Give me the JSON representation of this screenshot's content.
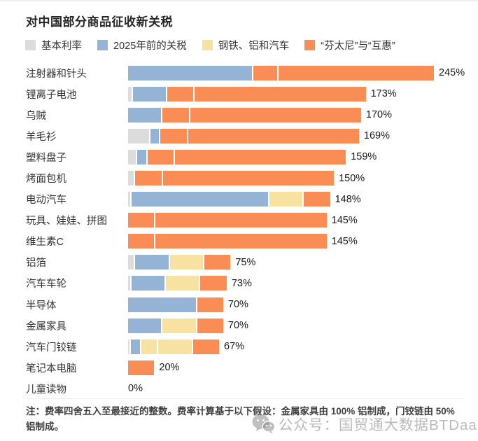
{
  "title": "对中国部分商品征收新关税",
  "legend": {
    "items": [
      {
        "key": "base",
        "label": "基本利率",
        "color": "#dcdcdc"
      },
      {
        "key": "pre2025",
        "label": "2025年前的关税",
        "color": "#95b3d4"
      },
      {
        "key": "steel",
        "label": "钢铁、铝和汽车",
        "color": "#f8e2a2"
      },
      {
        "key": "fentanyl",
        "label": "“芬太尼”与“互惠”",
        "color": "#f98d55"
      }
    ]
  },
  "chart_data": {
    "type": "bar",
    "orientation": "horizontal",
    "stacked": true,
    "unit": "%",
    "value_axis": {
      "min": 0,
      "max": 245,
      "visible": false
    },
    "legend_position": "top",
    "grid": false,
    "series_keys": [
      "base",
      "pre2025",
      "steel",
      "fentanyl"
    ],
    "categories": [
      "注射器和针头",
      "锂离子电池",
      "乌贼",
      "羊毛衫",
      "塑料盘子",
      "烤面包机",
      "电动汽车",
      "玩具、娃娃、拼图",
      "维生素C",
      "铝箔",
      "汽车车轮",
      "半导体",
      "金属家具",
      "汽车门铰链",
      "笔记本电脑",
      "儿童读物"
    ],
    "rows": [
      {
        "label": "注射器和针头",
        "total": 245,
        "total_label": "245%",
        "segments": [
          {
            "key": "pre2025",
            "value": 100
          },
          {
            "key": "fentanyl",
            "value": 20
          },
          {
            "key": "fentanyl",
            "value": 125
          }
        ]
      },
      {
        "label": "锂离子电池",
        "total": 173,
        "total_label": "173%",
        "segments": [
          {
            "key": "base",
            "value": 3.4
          },
          {
            "key": "pre2025",
            "value": 25
          },
          {
            "key": "fentanyl",
            "value": 20
          },
          {
            "key": "fentanyl",
            "value": 125
          }
        ]
      },
      {
        "label": "乌贼",
        "total": 170,
        "total_label": "170%",
        "segments": [
          {
            "key": "pre2025",
            "value": 25
          },
          {
            "key": "fentanyl",
            "value": 20
          },
          {
            "key": "fentanyl",
            "value": 125
          }
        ]
      },
      {
        "label": "羊毛衫",
        "total": 169,
        "total_label": "169%",
        "segments": [
          {
            "key": "base",
            "value": 16
          },
          {
            "key": "pre2025",
            "value": 7.5
          },
          {
            "key": "fentanyl",
            "value": 20
          },
          {
            "key": "fentanyl",
            "value": 125
          }
        ]
      },
      {
        "label": "塑料盘子",
        "total": 159,
        "total_label": "159%",
        "segments": [
          {
            "key": "base",
            "value": 6.5
          },
          {
            "key": "pre2025",
            "value": 7.5
          },
          {
            "key": "fentanyl",
            "value": 20
          },
          {
            "key": "fentanyl",
            "value": 125
          }
        ]
      },
      {
        "label": "烤面包机",
        "total": 150,
        "total_label": "150%",
        "segments": [
          {
            "key": "base",
            "value": 5.3
          },
          {
            "key": "fentanyl",
            "value": 20
          },
          {
            "key": "fentanyl",
            "value": 125
          }
        ]
      },
      {
        "label": "电动汽车",
        "total": 148,
        "total_label": "148%",
        "segments": [
          {
            "key": "base",
            "value": 2.5
          },
          {
            "key": "pre2025",
            "value": 100
          },
          {
            "key": "steel",
            "value": 25
          },
          {
            "key": "fentanyl",
            "value": 20
          }
        ]
      },
      {
        "label": "玩具、娃娃、拼图",
        "total": 145,
        "total_label": "145%",
        "segments": [
          {
            "key": "fentanyl",
            "value": 20
          },
          {
            "key": "fentanyl",
            "value": 125
          }
        ]
      },
      {
        "label": "维生素C",
        "total": 145,
        "total_label": "145%",
        "segments": [
          {
            "key": "fentanyl",
            "value": 20
          },
          {
            "key": "fentanyl",
            "value": 125
          }
        ]
      },
      {
        "label": "铝箔",
        "total": 75,
        "total_label": "75%",
        "segments": [
          {
            "key": "base",
            "value": 5.3
          },
          {
            "key": "pre2025",
            "value": 25
          },
          {
            "key": "steel",
            "value": 25
          },
          {
            "key": "fentanyl",
            "value": 20
          }
        ]
      },
      {
        "label": "汽车车轮",
        "total": 73,
        "total_label": "73%",
        "segments": [
          {
            "key": "base",
            "value": 2.5
          },
          {
            "key": "pre2025",
            "value": 25
          },
          {
            "key": "steel",
            "value": 25
          },
          {
            "key": "fentanyl",
            "value": 20
          }
        ]
      },
      {
        "label": "半导体",
        "total": 70,
        "total_label": "70%",
        "segments": [
          {
            "key": "pre2025",
            "value": 50
          },
          {
            "key": "fentanyl",
            "value": 20
          }
        ]
      },
      {
        "label": "金属家具",
        "total": 70,
        "total_label": "70%",
        "segments": [
          {
            "key": "pre2025",
            "value": 25
          },
          {
            "key": "steel",
            "value": 25
          },
          {
            "key": "fentanyl",
            "value": 20
          }
        ]
      },
      {
        "label": "汽车门铰链",
        "total": 67,
        "total_label": "67%",
        "segments": [
          {
            "key": "base",
            "value": 2
          },
          {
            "key": "pre2025",
            "value": 7.5
          },
          {
            "key": "steel",
            "value": 12.5
          },
          {
            "key": "steel",
            "value": 25
          },
          {
            "key": "fentanyl",
            "value": 20
          }
        ]
      },
      {
        "label": "笔记本电脑",
        "total": 20,
        "total_label": "20%",
        "segments": [
          {
            "key": "fentanyl",
            "value": 20
          }
        ]
      },
      {
        "label": "儿童读物",
        "total": 0,
        "total_label": "0%",
        "segments": []
      }
    ]
  },
  "footnote": "注：费率四舍五入至最接近的整数。费率计算基于以下假设：金属家具由 100% 铝制成，门铰链由 50% 铝制成。",
  "watermark": {
    "text": "公众号：国贸通大数据BTDaaS",
    "icon": "wechat-icon"
  }
}
